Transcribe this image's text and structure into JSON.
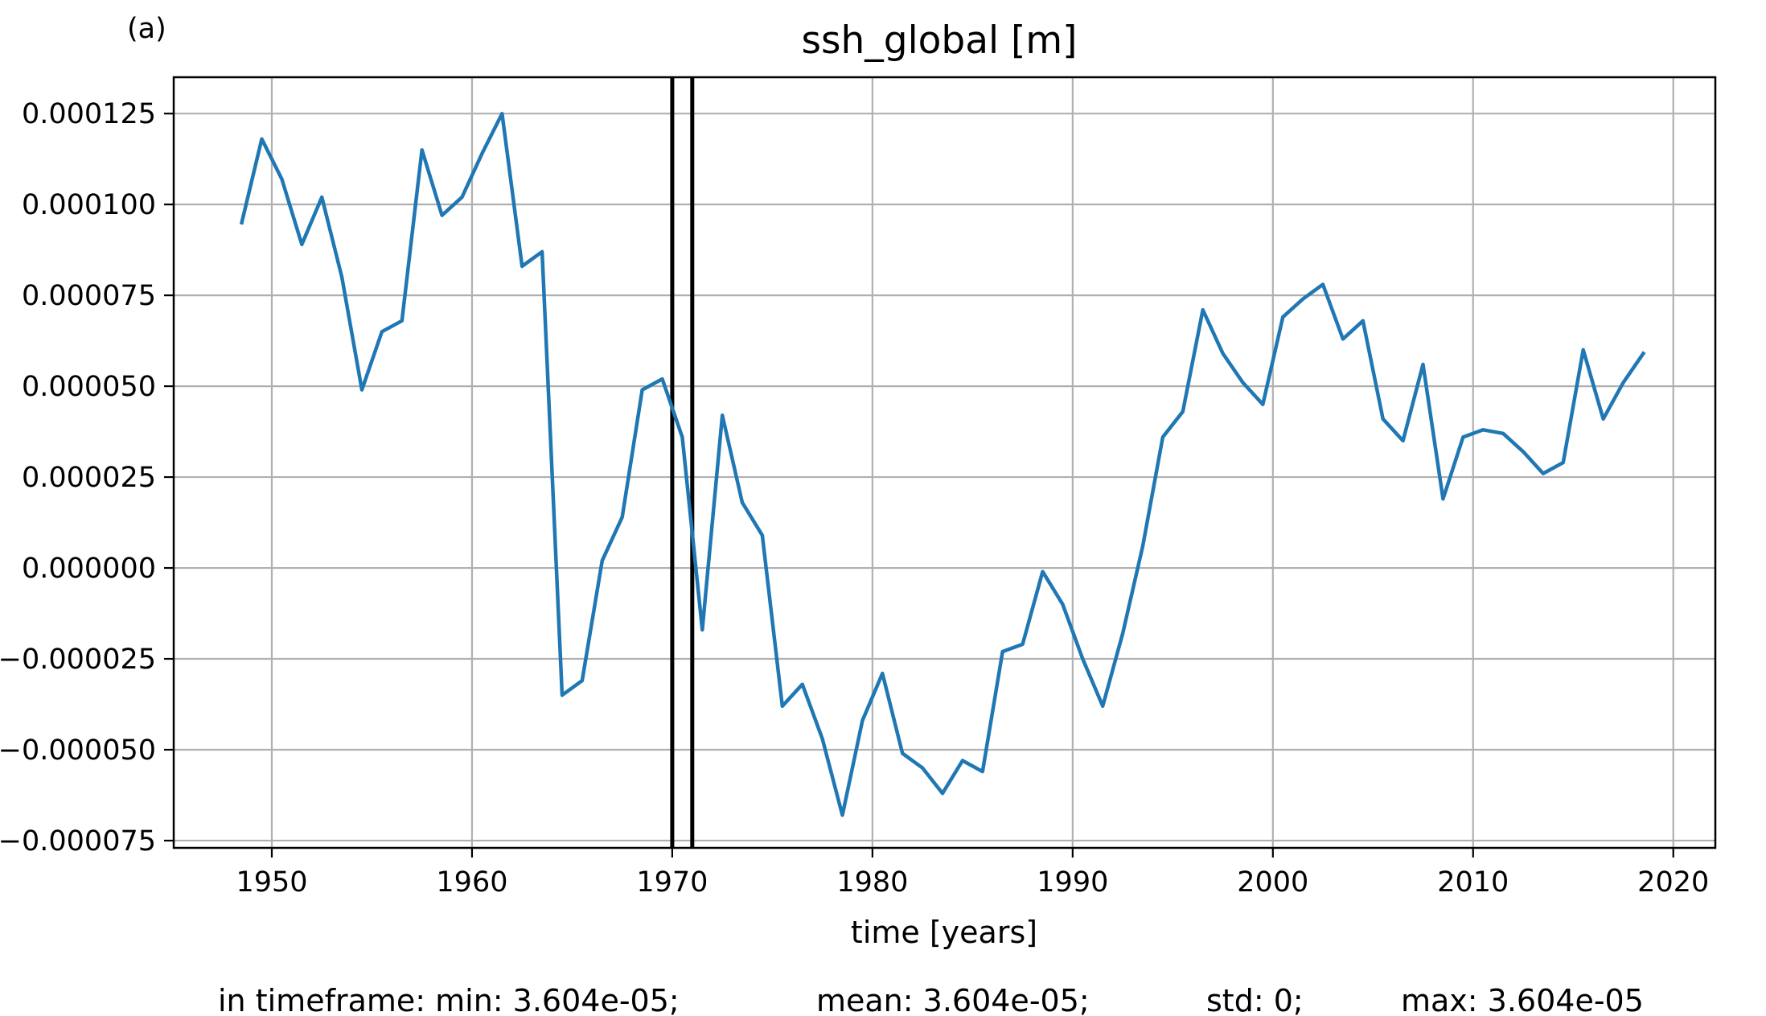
{
  "panel_label": "(a)",
  "stats": {
    "min": "in timeframe: min: 3.604e-05;",
    "mean": "mean: 3.604e-05;",
    "std": "std: 0;",
    "max": "max: 3.604e-05"
  },
  "colors": {
    "series": "#1f77b4",
    "grid": "#b0b0b0",
    "vline": "#000000"
  },
  "chart_data": {
    "type": "line",
    "title": "ssh_global [m]",
    "xlabel": "time [years]",
    "ylabel": "",
    "xlim": [
      1945.1,
      2022.1
    ],
    "ylim": [
      -7.7e-05,
      0.000135
    ],
    "grid": true,
    "xticks": [
      1950,
      1960,
      1970,
      1980,
      1990,
      2000,
      2010,
      2020
    ],
    "xtick_labels": [
      "1950",
      "1960",
      "1970",
      "1980",
      "1990",
      "2000",
      "2010",
      "2020"
    ],
    "yticks": [
      0.000125,
      0.0001,
      7.5e-05,
      5e-05,
      2.5e-05,
      0.0,
      -2.5e-05,
      -5e-05,
      -7.5e-05
    ],
    "ytick_labels": [
      "0.000125",
      "0.000100",
      "0.000075",
      "0.000050",
      "0.000025",
      "0.000000",
      "−0.000025",
      "−0.000050",
      "−0.000075"
    ],
    "vertical_lines": [
      1970.0,
      1971.0
    ],
    "series": [
      {
        "x": [
          1948.5,
          1949.5,
          1950.5,
          1951.5,
          1952.5,
          1953.5,
          1954.5,
          1955.5,
          1956.5,
          1957.5,
          1958.5,
          1959.5,
          1960.5,
          1961.5,
          1962.5,
          1963.5,
          1964.5,
          1965.5,
          1966.5,
          1967.5,
          1968.5,
          1969.5,
          1970.5,
          1971.5,
          1972.5,
          1973.5,
          1974.5,
          1975.5,
          1976.5,
          1977.5,
          1978.5,
          1979.5,
          1980.5,
          1981.5,
          1982.5,
          1983.5,
          1984.5,
          1985.5,
          1986.5,
          1987.5,
          1988.5,
          1989.5,
          1990.5,
          1991.5,
          1992.5,
          1993.5,
          1994.5,
          1995.5,
          1996.5,
          1997.5,
          1998.5,
          1999.5,
          2000.5,
          2001.5,
          2002.5,
          2003.5,
          2004.5,
          2005.5,
          2006.5,
          2007.5,
          2008.5,
          2009.5,
          2010.5,
          2011.5,
          2012.5,
          2013.5,
          2014.5,
          2015.5,
          2016.5,
          2017.5,
          2018.5
        ],
        "values": [
          9.5e-05,
          0.000118,
          0.000107,
          8.9e-05,
          0.000102,
          8e-05,
          4.9e-05,
          6.5e-05,
          6.8e-05,
          0.000115,
          9.7e-05,
          0.000102,
          0.000114,
          0.000125,
          8.3e-05,
          8.7e-05,
          -3.5e-05,
          -3.1e-05,
          2e-06,
          1.4e-05,
          4.9e-05,
          5.2e-05,
          3.6e-05,
          -1.7e-05,
          4.2e-05,
          1.8e-05,
          9e-06,
          -3.8e-05,
          -3.2e-05,
          -4.7e-05,
          -6.8e-05,
          -4.2e-05,
          -2.9e-05,
          -5.1e-05,
          -5.5e-05,
          -6.2e-05,
          -5.3e-05,
          -5.6e-05,
          -2.3e-05,
          -2.1e-05,
          -1e-06,
          -1e-05,
          -2.5e-05,
          -3.8e-05,
          -1.8e-05,
          6e-06,
          3.6e-05,
          4.3e-05,
          7.1e-05,
          5.9e-05,
          5.1e-05,
          4.5e-05,
          6.9e-05,
          7.4e-05,
          7.8e-05,
          6.3e-05,
          6.8e-05,
          4.1e-05,
          3.5e-05,
          5.6e-05,
          1.9e-05,
          3.6e-05,
          3.8e-05,
          3.7e-05,
          3.2e-05,
          2.6e-05,
          2.9e-05,
          6e-05,
          4.1e-05,
          5.1e-05,
          5.9e-05
        ]
      }
    ]
  }
}
